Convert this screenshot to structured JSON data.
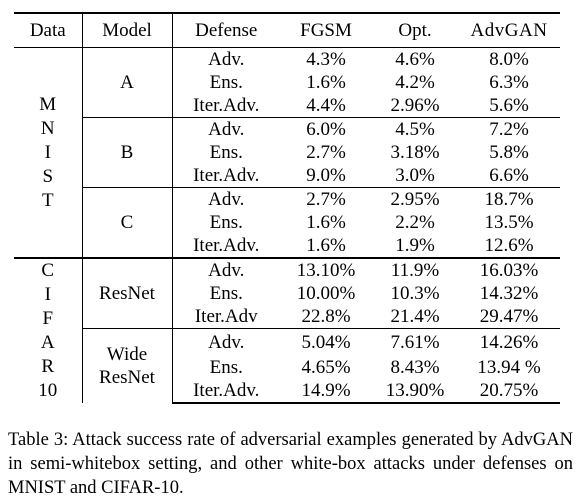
{
  "table": {
    "headers": {
      "data": "Data",
      "model": "Model",
      "defense": "Defense",
      "fgsm": "FGSM",
      "opt": "Opt.",
      "advgan": "AdvGAN"
    },
    "datasets": [
      {
        "name_vertical": "M\nN\nI\nS\nT",
        "models": [
          {
            "name": "A",
            "rows": [
              {
                "defense": "Adv.",
                "fgsm": "4.3%",
                "opt": "4.6%",
                "advgan": "8.0%"
              },
              {
                "defense": "Ens.",
                "fgsm": "1.6%",
                "opt": "4.2%",
                "advgan": "6.3%"
              },
              {
                "defense": "Iter.Adv.",
                "fgsm": "4.4%",
                "opt": "2.96%",
                "advgan": "5.6%"
              }
            ]
          },
          {
            "name": "B",
            "rows": [
              {
                "defense": "Adv.",
                "fgsm": "6.0%",
                "opt": "4.5%",
                "advgan": "7.2%"
              },
              {
                "defense": "Ens.",
                "fgsm": "2.7%",
                "opt": "3.18%",
                "advgan": "5.8%"
              },
              {
                "defense": "Iter.Adv.",
                "fgsm": "9.0%",
                "opt": "3.0%",
                "advgan": "6.6%"
              }
            ]
          },
          {
            "name": "C",
            "rows": [
              {
                "defense": "Adv.",
                "fgsm": "2.7%",
                "opt": "2.95%",
                "advgan": "18.7%"
              },
              {
                "defense": "Ens.",
                "fgsm": "1.6%",
                "opt": "2.2%",
                "advgan": "13.5%"
              },
              {
                "defense": "Iter.Adv.",
                "fgsm": "1.6%",
                "opt": "1.9%",
                "advgan": "12.6%"
              }
            ]
          }
        ]
      },
      {
        "name_vertical": "C\nI\nF\nA\nR\n10",
        "models": [
          {
            "name": "ResNet",
            "rows": [
              {
                "defense": "Adv.",
                "fgsm": "13.10%",
                "opt": "11.9%",
                "advgan": "16.03%"
              },
              {
                "defense": "Ens.",
                "fgsm": "10.00%",
                "opt": "10.3%",
                "advgan": "14.32%"
              },
              {
                "defense": "Iter.Adv",
                "fgsm": "22.8%",
                "opt": "21.4%",
                "advgan": "29.47%"
              }
            ]
          },
          {
            "name": "Wide\nResNet",
            "rows": [
              {
                "defense": "Adv.",
                "fgsm": "5.04%",
                "opt": "7.61%",
                "advgan": "14.26%"
              },
              {
                "defense": "Ens.",
                "fgsm": "4.65%",
                "opt": "8.43%",
                "advgan": "13.94 %"
              },
              {
                "defense": "Iter.Adv.",
                "fgsm": "14.9%",
                "opt": "13.90%",
                "advgan": "20.75%"
              }
            ]
          }
        ]
      }
    ]
  },
  "caption": "Table 3: Attack success rate of adversarial examples generated by AdvGAN in semi-whitebox setting, and other white-box attacks under defenses on MNIST and CIFAR-10."
}
